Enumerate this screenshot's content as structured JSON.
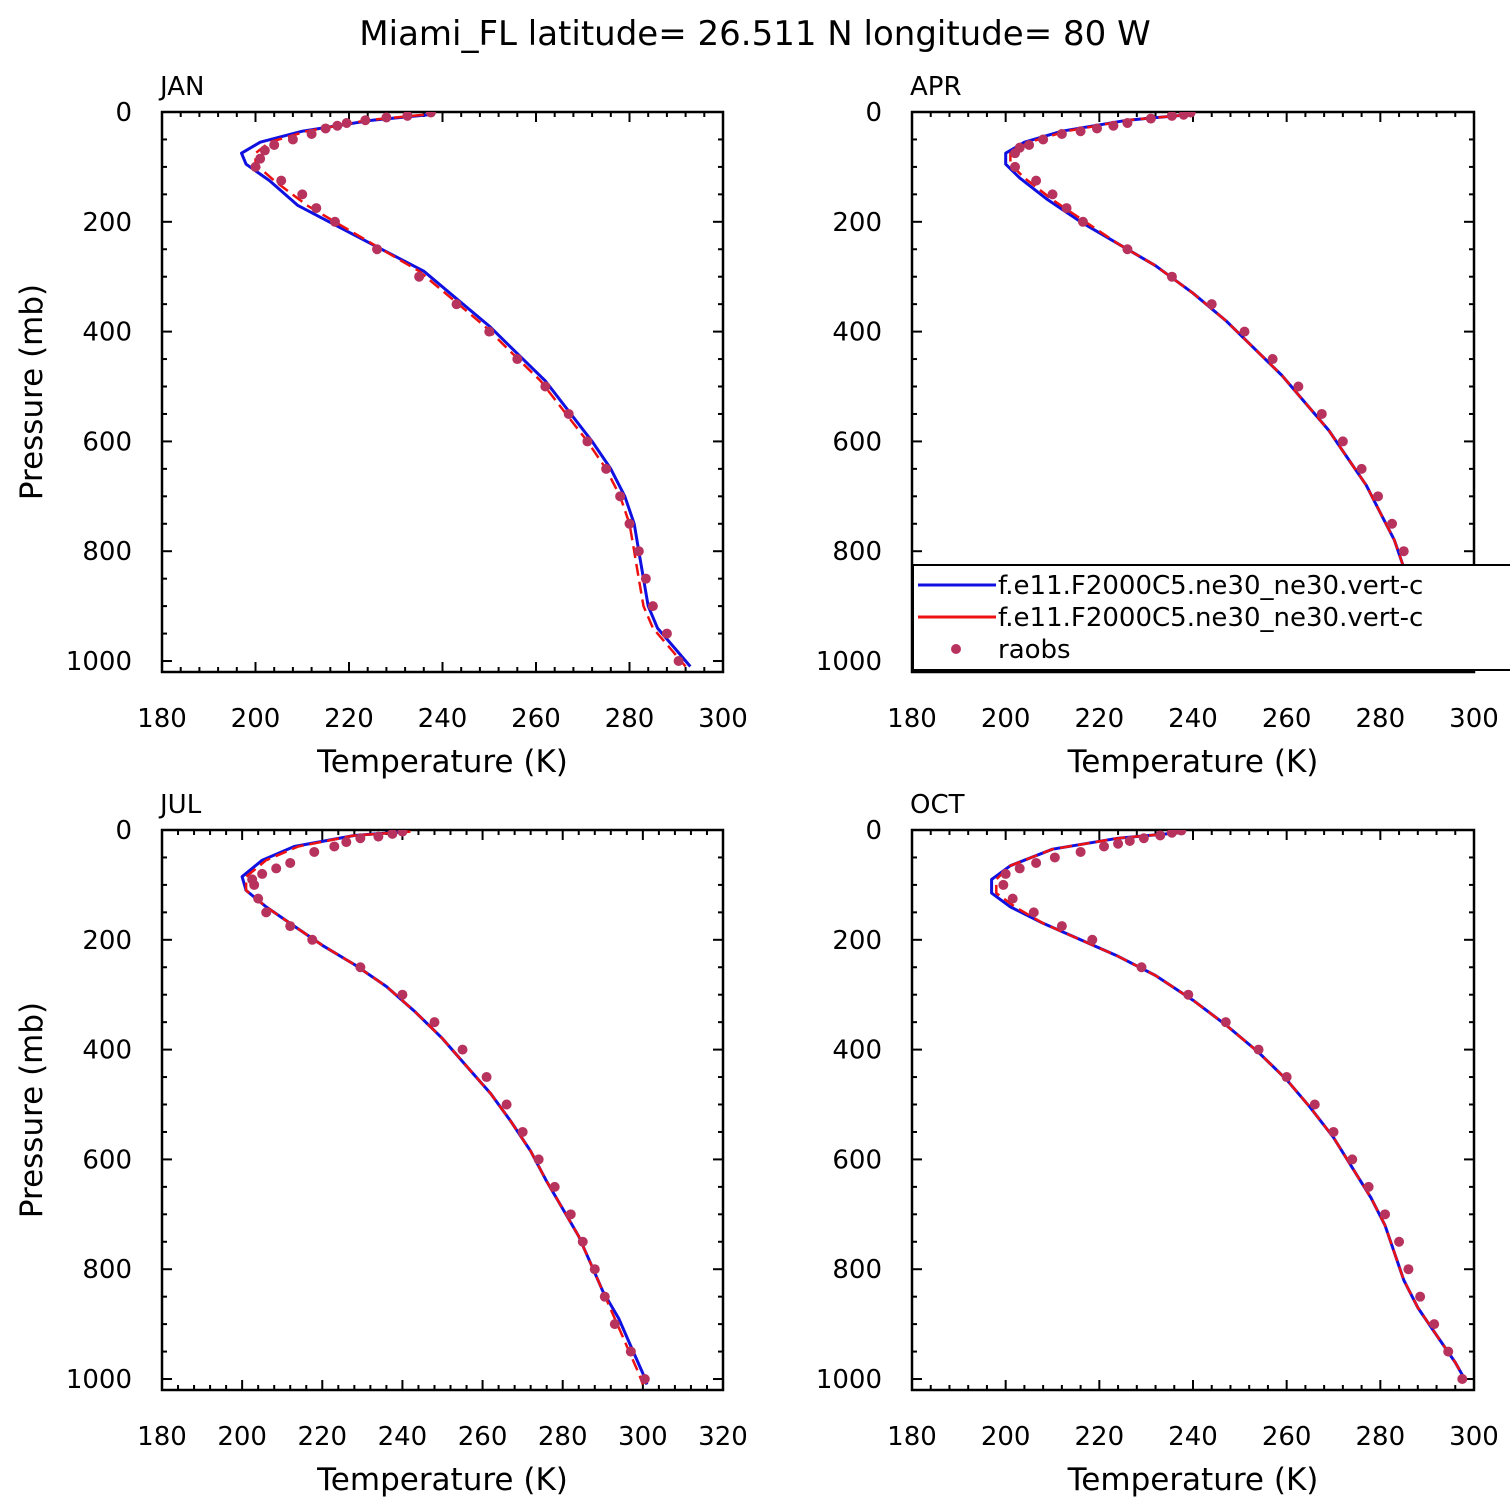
{
  "figure": {
    "title": "Miami_FL  latitude= 26.511 N longitude= 80 W"
  },
  "legend": {
    "placement": "right side of APR panel",
    "entries": [
      {
        "label": "f.e11.F2000C5.ne30_ne30.vert-c",
        "style": "solid line",
        "color": "#1010e0"
      },
      {
        "label": "f.e11.F2000C5.ne30_ne30.vert-c",
        "style": "dashed line",
        "color": "#ee1111"
      },
      {
        "label": "raobs",
        "style": "dots",
        "color": "#b8325e"
      }
    ]
  },
  "chart_data": [
    {
      "type": "line",
      "title": "JAN",
      "xlabel": "Temperature (K)",
      "ylabel": "Pressure (mb)",
      "xlim": [
        180,
        300
      ],
      "ylim": [
        0,
        1020
      ],
      "y_inverted": true,
      "xticks": [
        180,
        200,
        220,
        240,
        260,
        280,
        300
      ],
      "yticks": [
        0,
        200,
        400,
        600,
        800,
        1000
      ],
      "series": [
        {
          "name": "f.e11.F2000C5.ne30_ne30.vert-c",
          "style": "solid",
          "color": "#1010e0",
          "x": [
            237,
            225,
            210,
            201,
            197,
            198,
            203,
            209,
            218,
            227,
            236,
            243,
            250,
            256,
            262,
            267,
            272,
            276,
            279,
            281,
            282,
            283,
            284,
            286,
            290,
            293
          ],
          "y": [
            5,
            15,
            35,
            55,
            75,
            95,
            125,
            170,
            210,
            250,
            290,
            340,
            390,
            440,
            490,
            545,
            600,
            650,
            700,
            750,
            800,
            850,
            900,
            940,
            980,
            1010
          ]
        },
        {
          "name": "f.e11.F2000C5.ne30_ne30.vert-c",
          "style": "dashed",
          "color": "#ee1111",
          "x": [
            236,
            224,
            211,
            203,
            200,
            200,
            204,
            211,
            219,
            227,
            235,
            242,
            249,
            255,
            261,
            266,
            271,
            275,
            278,
            280,
            281,
            282,
            283,
            285,
            289,
            292
          ],
          "y": [
            5,
            15,
            35,
            55,
            75,
            95,
            125,
            170,
            210,
            250,
            290,
            340,
            390,
            440,
            490,
            545,
            600,
            650,
            700,
            750,
            800,
            850,
            900,
            940,
            980,
            1010
          ]
        },
        {
          "name": "raobs",
          "style": "dots",
          "color": "#b8325e",
          "x": [
            237.5,
            232.5,
            228,
            223.5,
            219.5,
            217.5,
            215,
            212,
            208,
            204,
            202,
            201,
            200,
            205.5,
            210,
            213,
            217,
            226,
            235,
            243,
            250,
            256,
            262,
            267,
            271,
            275,
            278,
            280,
            282,
            283.5,
            285,
            288,
            290.5
          ],
          "y": [
            1,
            7,
            10,
            15,
            20,
            25,
            30,
            40,
            50,
            60,
            70,
            85,
            100,
            125,
            150,
            175,
            200,
            250,
            300,
            350,
            400,
            450,
            500,
            550,
            600,
            650,
            700,
            750,
            800,
            850,
            900,
            950,
            1000
          ]
        }
      ]
    },
    {
      "type": "line",
      "title": "APR",
      "xlabel": "Temperature (K)",
      "ylabel": "",
      "xlim": [
        180,
        300
      ],
      "ylim": [
        0,
        1020
      ],
      "y_inverted": true,
      "xticks": [
        180,
        200,
        220,
        240,
        260,
        280,
        300
      ],
      "yticks": [
        0,
        200,
        400,
        600,
        800,
        1000
      ],
      "series": [
        {
          "name": "f.e11.F2000C5.ne30_ne30.vert-c",
          "style": "solid",
          "color": "#1010e0",
          "x": [
            239,
            226,
            212,
            204,
            200,
            200,
            203,
            209,
            216,
            224,
            232,
            240,
            247,
            253,
            259,
            264,
            269,
            273,
            277,
            280,
            283,
            285,
            288,
            291,
            294,
            296
          ],
          "y": [
            5,
            15,
            35,
            55,
            75,
            95,
            120,
            160,
            200,
            240,
            280,
            330,
            380,
            430,
            480,
            530,
            580,
            630,
            680,
            730,
            780,
            830,
            880,
            930,
            980,
            1000
          ]
        },
        {
          "name": "f.e11.F2000C5.ne30_ne30.vert-c",
          "style": "dashed",
          "color": "#ee1111",
          "x": [
            239,
            226,
            213,
            205,
            201,
            201,
            204,
            210,
            217,
            224,
            232,
            240,
            247,
            253,
            259,
            264,
            269,
            273,
            277,
            280,
            283,
            285,
            288,
            291,
            294,
            296
          ],
          "y": [
            5,
            15,
            35,
            55,
            75,
            95,
            120,
            160,
            200,
            240,
            280,
            330,
            380,
            430,
            480,
            530,
            580,
            630,
            680,
            730,
            780,
            830,
            880,
            930,
            980,
            1000
          ]
        },
        {
          "name": "raobs",
          "style": "dots",
          "color": "#b8325e",
          "x": [
            239.5,
            238,
            235.5,
            231,
            226,
            223,
            219.5,
            216,
            212,
            208,
            205,
            203,
            202,
            202,
            206.5,
            210,
            213,
            216.5,
            226,
            235.5,
            244,
            251,
            257,
            262.5,
            267.5,
            272,
            276,
            279.5,
            282.5,
            285,
            288,
            291.5,
            295.5
          ],
          "y": [
            1,
            5,
            7,
            12,
            20,
            25,
            30,
            35,
            40,
            50,
            60,
            65,
            75,
            100,
            125,
            150,
            175,
            200,
            250,
            300,
            350,
            400,
            450,
            500,
            550,
            600,
            650,
            700,
            750,
            800,
            900,
            950,
            1000
          ]
        }
      ]
    },
    {
      "type": "line",
      "title": "JUL",
      "xlabel": "Temperature (K)",
      "ylabel": "Pressure (mb)",
      "xlim": [
        180,
        320
      ],
      "ylim": [
        0,
        1020
      ],
      "y_inverted": true,
      "xticks": [
        180,
        200,
        220,
        240,
        260,
        280,
        300,
        320
      ],
      "yticks": [
        0,
        200,
        400,
        600,
        800,
        1000
      ],
      "series": [
        {
          "name": "f.e11.F2000C5.ne30_ne30.vert-c",
          "style": "solid",
          "color": "#1010e0",
          "x": [
            241,
            228,
            213,
            205,
            200,
            201,
            206,
            213,
            220,
            228,
            236,
            243,
            250,
            256,
            262,
            267,
            272,
            276,
            280,
            284,
            287,
            290,
            294,
            297,
            300,
            301
          ],
          "y": [
            3,
            10,
            30,
            55,
            85,
            110,
            140,
            175,
            210,
            245,
            285,
            330,
            380,
            430,
            480,
            530,
            585,
            640,
            690,
            740,
            790,
            840,
            890,
            940,
            990,
            1010
          ]
        },
        {
          "name": "f.e11.F2000C5.ne30_ne30.vert-c",
          "style": "dashed",
          "color": "#ee1111",
          "x": [
            242,
            228,
            214,
            206,
            201,
            201,
            206,
            213,
            220,
            228,
            236,
            243,
            250,
            256,
            262,
            267,
            272,
            276,
            280,
            284,
            287,
            290,
            293,
            296,
            299,
            300
          ],
          "y": [
            3,
            10,
            30,
            55,
            85,
            110,
            140,
            175,
            210,
            245,
            285,
            330,
            380,
            430,
            480,
            530,
            585,
            640,
            690,
            740,
            790,
            840,
            890,
            940,
            990,
            1010
          ]
        },
        {
          "name": "raobs",
          "style": "dots",
          "color": "#b8325e",
          "x": [
            240,
            237.5,
            234,
            229.5,
            226,
            223,
            218,
            212,
            208.5,
            205,
            202.5,
            203,
            204,
            206,
            212,
            217.5,
            229.5,
            240,
            248,
            255,
            261,
            266,
            270,
            274,
            278,
            282,
            285,
            288,
            290.5,
            293,
            297,
            300.5
          ],
          "y": [
            3,
            7,
            12,
            15,
            22,
            30,
            40,
            60,
            70,
            80,
            90,
            100,
            125,
            150,
            175,
            200,
            250,
            300,
            350,
            400,
            450,
            500,
            550,
            600,
            650,
            700,
            750,
            800,
            850,
            900,
            950,
            1000
          ]
        }
      ]
    },
    {
      "type": "line",
      "title": "OCT",
      "xlabel": "Temperature (K)",
      "ylabel": "",
      "xlim": [
        180,
        300
      ],
      "ylim": [
        0,
        1020
      ],
      "y_inverted": true,
      "xticks": [
        180,
        200,
        220,
        240,
        260,
        280,
        300
      ],
      "yticks": [
        0,
        200,
        400,
        600,
        800,
        1000
      ],
      "series": [
        {
          "name": "f.e11.F2000C5.ne30_ne30.vert-c",
          "style": "solid",
          "color": "#1010e0",
          "x": [
            237,
            224,
            210,
            201,
            197,
            197,
            201,
            208,
            216,
            224,
            232,
            240,
            247,
            254,
            260,
            265,
            270,
            274,
            278,
            281,
            283,
            285,
            288,
            292,
            296,
            298
          ],
          "y": [
            5,
            15,
            35,
            65,
            90,
            115,
            140,
            170,
            200,
            230,
            265,
            310,
            355,
            405,
            455,
            505,
            560,
            615,
            670,
            720,
            770,
            820,
            870,
            920,
            970,
            1000
          ]
        },
        {
          "name": "f.e11.F2000C5.ne30_ne30.vert-c",
          "style": "dashed",
          "color": "#ee1111",
          "x": [
            237,
            224,
            210,
            201,
            198,
            198,
            202,
            208,
            216,
            224,
            232,
            240,
            247,
            254,
            260,
            265,
            270,
            274,
            278,
            281,
            283,
            285,
            288,
            292,
            296,
            298
          ],
          "y": [
            5,
            15,
            35,
            65,
            90,
            115,
            140,
            170,
            200,
            230,
            265,
            310,
            355,
            405,
            455,
            505,
            560,
            615,
            670,
            720,
            770,
            820,
            870,
            920,
            970,
            1000
          ]
        },
        {
          "name": "raobs",
          "style": "dots",
          "color": "#b8325e",
          "x": [
            237.5,
            235.5,
            233,
            229.5,
            226.5,
            224,
            221,
            216,
            210.5,
            206.5,
            203,
            200,
            199.5,
            201.5,
            206,
            212,
            218.5,
            229,
            239,
            247,
            254,
            260,
            266,
            270,
            274,
            277.5,
            281,
            284,
            286,
            288.5,
            291.5,
            294.5,
            297.5
          ],
          "y": [
            1,
            5,
            10,
            15,
            20,
            25,
            30,
            40,
            50,
            60,
            70,
            80,
            100,
            125,
            150,
            175,
            200,
            250,
            300,
            350,
            400,
            450,
            500,
            550,
            600,
            650,
            700,
            750,
            800,
            850,
            900,
            950,
            1000
          ]
        }
      ]
    }
  ]
}
